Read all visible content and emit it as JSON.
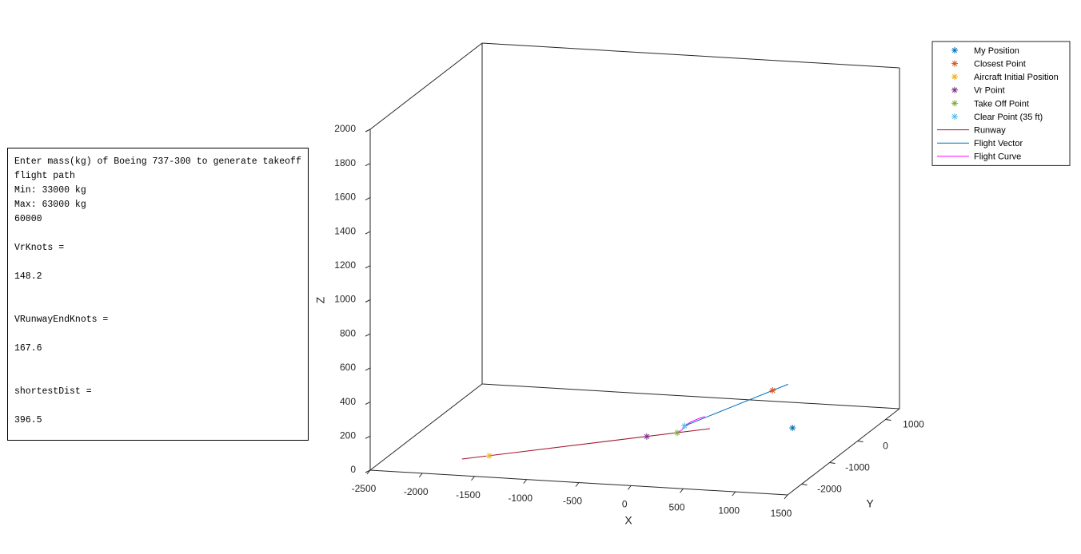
{
  "console": {
    "lines": [
      "Enter mass(kg) of Boeing 737-300 to generate takeoff flight path",
      "Min: 33000 kg",
      "Max: 63000 kg",
      "60000",
      "VrKnots =",
      "148.2",
      "VRunwayEndKnots =",
      "167.6",
      "shortestDist =",
      "396.5"
    ]
  },
  "chart_data": {
    "type": "scatter3d",
    "xlabel": "X",
    "ylabel": "Y",
    "zlabel": "Z",
    "xlim": [
      -2500,
      1500
    ],
    "ylim": [
      -2500,
      1500
    ],
    "zlim": [
      0,
      2000
    ],
    "xticks": [
      -2500,
      -2000,
      -1500,
      -1000,
      -500,
      0,
      500,
      1000,
      1500
    ],
    "yticks": [
      -2000,
      -1000,
      0,
      1000
    ],
    "zticks": [
      0,
      200,
      400,
      600,
      800,
      1000,
      1200,
      1400,
      1600,
      1800,
      2000
    ],
    "legend": "upper right",
    "series": [
      {
        "name": "My Position",
        "mode": "marker",
        "color": "#0072bd",
        "x": [
          770
        ],
        "y": [
          400
        ],
        "z": [
          0
        ]
      },
      {
        "name": "Closest Point",
        "mode": "marker",
        "color": "#d95319",
        "x": [
          514
        ],
        "y": [
          644
        ],
        "z": [
          180
        ]
      },
      {
        "name": "Aircraft Initial Position",
        "mode": "marker",
        "color": "#edb120",
        "x": [
          -1606
        ],
        "y": [
          -1576
        ],
        "z": [
          0
        ]
      },
      {
        "name": "Vr Point",
        "mode": "marker",
        "color": "#7e2f8e",
        "x": [
          -428
        ],
        "y": [
          -343
        ],
        "z": [
          0
        ]
      },
      {
        "name": "Take Off Point",
        "mode": "marker",
        "color": "#77ac30",
        "x": [
          -200
        ],
        "y": [
          -104
        ],
        "z": [
          0
        ]
      },
      {
        "name": "Clear Point (35 ft)",
        "mode": "marker",
        "color": "#4dbeee",
        "x": [
          -145
        ],
        "y": [
          -46
        ],
        "z": [
          35
        ]
      },
      {
        "name": "Runway",
        "mode": "line",
        "color": "#a2142f",
        "x": [
          -1812,
          44
        ],
        "y": [
          -1784,
          156
        ],
        "z": [
          0,
          0
        ]
      },
      {
        "name": "Flight Vector",
        "mode": "line",
        "color": "#0072bd",
        "x": [
          -145,
          629
        ],
        "y": [
          -46,
          764
        ],
        "z": [
          35,
          205
        ]
      },
      {
        "name": "Flight Curve",
        "mode": "line",
        "color": "#ff00ff",
        "x": [
          -200,
          -179,
          -159,
          -145,
          -96,
          -27,
          8
        ],
        "y": [
          -104,
          -82,
          -61,
          -46,
          4,
          77,
          113
        ],
        "z": [
          0,
          5,
          18,
          35,
          55,
          70,
          75
        ]
      }
    ]
  }
}
